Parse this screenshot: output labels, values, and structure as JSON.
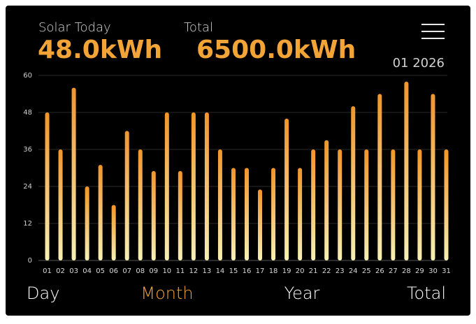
{
  "header": {
    "today_label": "Solar Today",
    "today_value": "48.0kWh",
    "total_label": "Total",
    "total_value": "6500.0kWh",
    "period": "01 2026"
  },
  "chart_data": {
    "type": "bar",
    "categories": [
      "01",
      "02",
      "03",
      "04",
      "05",
      "06",
      "07",
      "08",
      "09",
      "10",
      "11",
      "12",
      "13",
      "14",
      "15",
      "16",
      "17",
      "18",
      "19",
      "20",
      "21",
      "22",
      "23",
      "24",
      "25",
      "26",
      "27",
      "28",
      "29",
      "30",
      "31"
    ],
    "values": [
      48,
      36,
      56,
      24,
      31,
      18,
      42,
      36,
      29,
      48,
      29,
      48,
      48,
      36,
      30,
      30,
      23,
      30,
      46,
      30,
      36,
      39,
      36,
      50,
      36,
      54,
      36,
      58,
      36,
      54,
      36
    ],
    "color": "#f2952b",
    "color_end": "#f7f0b4",
    "ylim": [
      0,
      60
    ],
    "yticks": [
      0,
      12,
      24,
      36,
      48,
      60
    ],
    "grid": true
  },
  "tabs": [
    "Day",
    "Month",
    "Year",
    "Total"
  ],
  "active_tab": 1
}
